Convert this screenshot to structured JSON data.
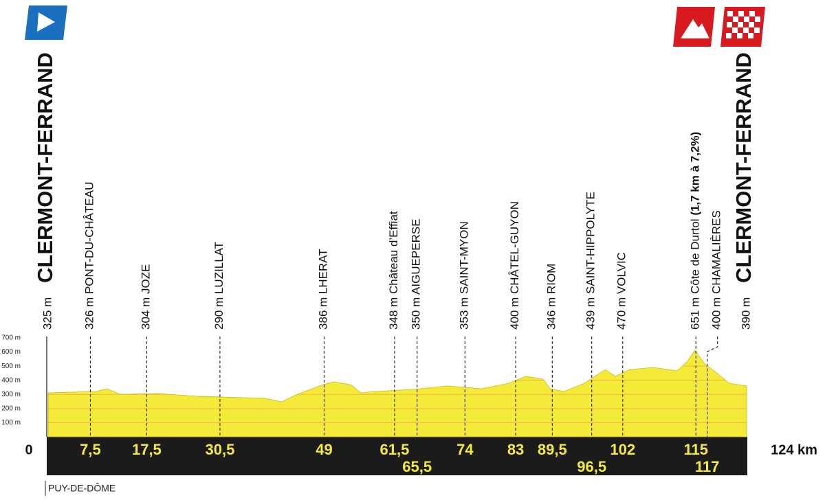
{
  "chart_data": {
    "type": "area",
    "start": {
      "elevation_label": "325 m",
      "city": "CLERMONT-FERRAND",
      "km_label": "0"
    },
    "finish": {
      "elevation_label": "390 m",
      "city": "CLERMONT-FERRAND",
      "km_label": "124 km"
    },
    "waypoints": [
      {
        "label": "326 m PONT-DU-CHÂTEAU",
        "km": {
          "value": 7.5,
          "label": "7,5"
        }
      },
      {
        "label": "304 m JOZE",
        "km": {
          "value": 17.5,
          "label": "17,5"
        }
      },
      {
        "label": "290 m LUZILLAT",
        "km": {
          "value": 30.5,
          "label": "30,5"
        }
      },
      {
        "label": "386 m LHERAT",
        "km": {
          "value": 49,
          "label": "49"
        }
      },
      {
        "label": "348 m Château d’Effiat",
        "km": {
          "value": 61.5,
          "label": "61,5"
        }
      },
      {
        "label": "350 m AIGUEPERSE",
        "km": {
          "value": 65.5,
          "label": "65,5"
        }
      },
      {
        "label": "353 m SAINT-MYON",
        "km": {
          "value": 74,
          "label": "74"
        }
      },
      {
        "label": "400 m CHÂTEL-GUYON",
        "km": {
          "value": 83,
          "label": "83"
        }
      },
      {
        "label": "346 m RIOM",
        "km": {
          "value": 89.5,
          "label": "89,5"
        }
      },
      {
        "label": "439 m SAINT-HIPPOLYTE",
        "km": {
          "value": 96.5,
          "label": "96,5"
        }
      },
      {
        "label": "470 m VOLVIC",
        "km": {
          "value": 102,
          "label": "102"
        }
      },
      {
        "label": "651 m Côte de Durtol",
        "climb": "(1,7 km à 7,2%)",
        "km": {
          "value": 115,
          "label": "115"
        }
      },
      {
        "label": "400 m CHAMALIÈRES",
        "km": {
          "value": 117,
          "label": "117"
        }
      }
    ],
    "profile": {
      "color": "#f5e93a",
      "km": [
        0,
        8.5,
        10.4,
        12.8,
        19.5,
        26.3,
        38.5,
        41.5,
        44,
        48.8,
        50.7,
        53.7,
        55.6,
        58,
        64.7,
        70.8,
        76.9,
        81.8,
        84.8,
        87.9,
        89.1,
        91.6,
        95.2,
        98.9,
        100.7,
        103.2,
        107.4,
        111.7,
        113.6,
        114.8,
        116.6,
        119,
        120.9,
        124
      ],
      "elevation": [
        311,
        321,
        340,
        301,
        306,
        287,
        272,
        248,
        297,
        369,
        389,
        369,
        311,
        321,
        335,
        360,
        340,
        379,
        428,
        408,
        340,
        321,
        379,
        476,
        428,
        476,
        491,
        467,
        540,
        613,
        515,
        442,
        379,
        360
      ]
    },
    "xlim": [
      0,
      124
    ],
    "ylim": [
      0,
      700
    ],
    "yticks": [
      {
        "value": 100,
        "label": "100 m"
      },
      {
        "value": 200,
        "label": "200 m"
      },
      {
        "value": 300,
        "label": "300 m"
      },
      {
        "value": 400,
        "label": "400 m"
      },
      {
        "value": 500,
        "label": "500 m"
      },
      {
        "value": 600,
        "label": "600 m"
      },
      {
        "value": 700,
        "label": "700 m"
      }
    ],
    "grid": true,
    "region": "PUY-DE-DÔME"
  }
}
